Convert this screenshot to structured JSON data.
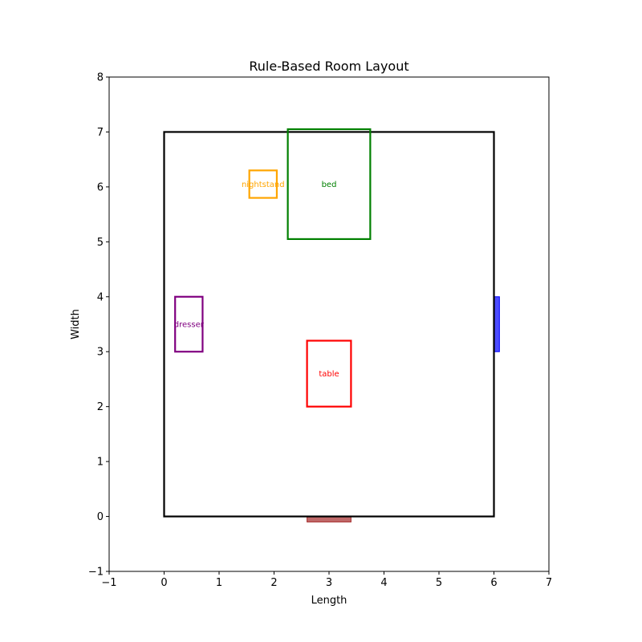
{
  "chart_data": {
    "type": "floor-plan",
    "title": "Rule-Based Room Layout",
    "xlabel": "Length",
    "ylabel": "Width",
    "xlim": [
      -1,
      7
    ],
    "ylim": [
      -1,
      8
    ],
    "xticks": [
      -1,
      0,
      1,
      2,
      3,
      4,
      5,
      6,
      7
    ],
    "yticks": [
      -1,
      0,
      1,
      2,
      3,
      4,
      5,
      6,
      7,
      8
    ],
    "xtick_labels": [
      "−1",
      "0",
      "1",
      "2",
      "3",
      "4",
      "5",
      "6",
      "7"
    ],
    "ytick_labels": [
      "−1",
      "0",
      "1",
      "2",
      "3",
      "4",
      "5",
      "6",
      "7",
      "8"
    ],
    "grid": false,
    "room": {
      "x": 0,
      "y": 0,
      "width": 6,
      "height": 7,
      "color": "#000000"
    },
    "furniture": [
      {
        "name": "bed",
        "x": 2.25,
        "y": 5.05,
        "width": 1.5,
        "height": 2.0,
        "color": "#008000"
      },
      {
        "name": "nightstand",
        "x": 1.55,
        "y": 5.8,
        "width": 0.5,
        "height": 0.5,
        "color": "#FFA500"
      },
      {
        "name": "dresser",
        "x": 0.2,
        "y": 3.0,
        "width": 0.5,
        "height": 1.0,
        "color": "#800080"
      },
      {
        "name": "table",
        "x": 2.6,
        "y": 2.0,
        "width": 0.8,
        "height": 1.2,
        "color": "#FF0000"
      }
    ],
    "openings": [
      {
        "x": 6.0,
        "y": 3.0,
        "width": 0.1,
        "height": 1.0,
        "color": "#0000FF"
      },
      {
        "x": 2.6,
        "y": -0.1,
        "width": 0.8,
        "height": 0.1,
        "color": "#A52A2A"
      }
    ]
  }
}
